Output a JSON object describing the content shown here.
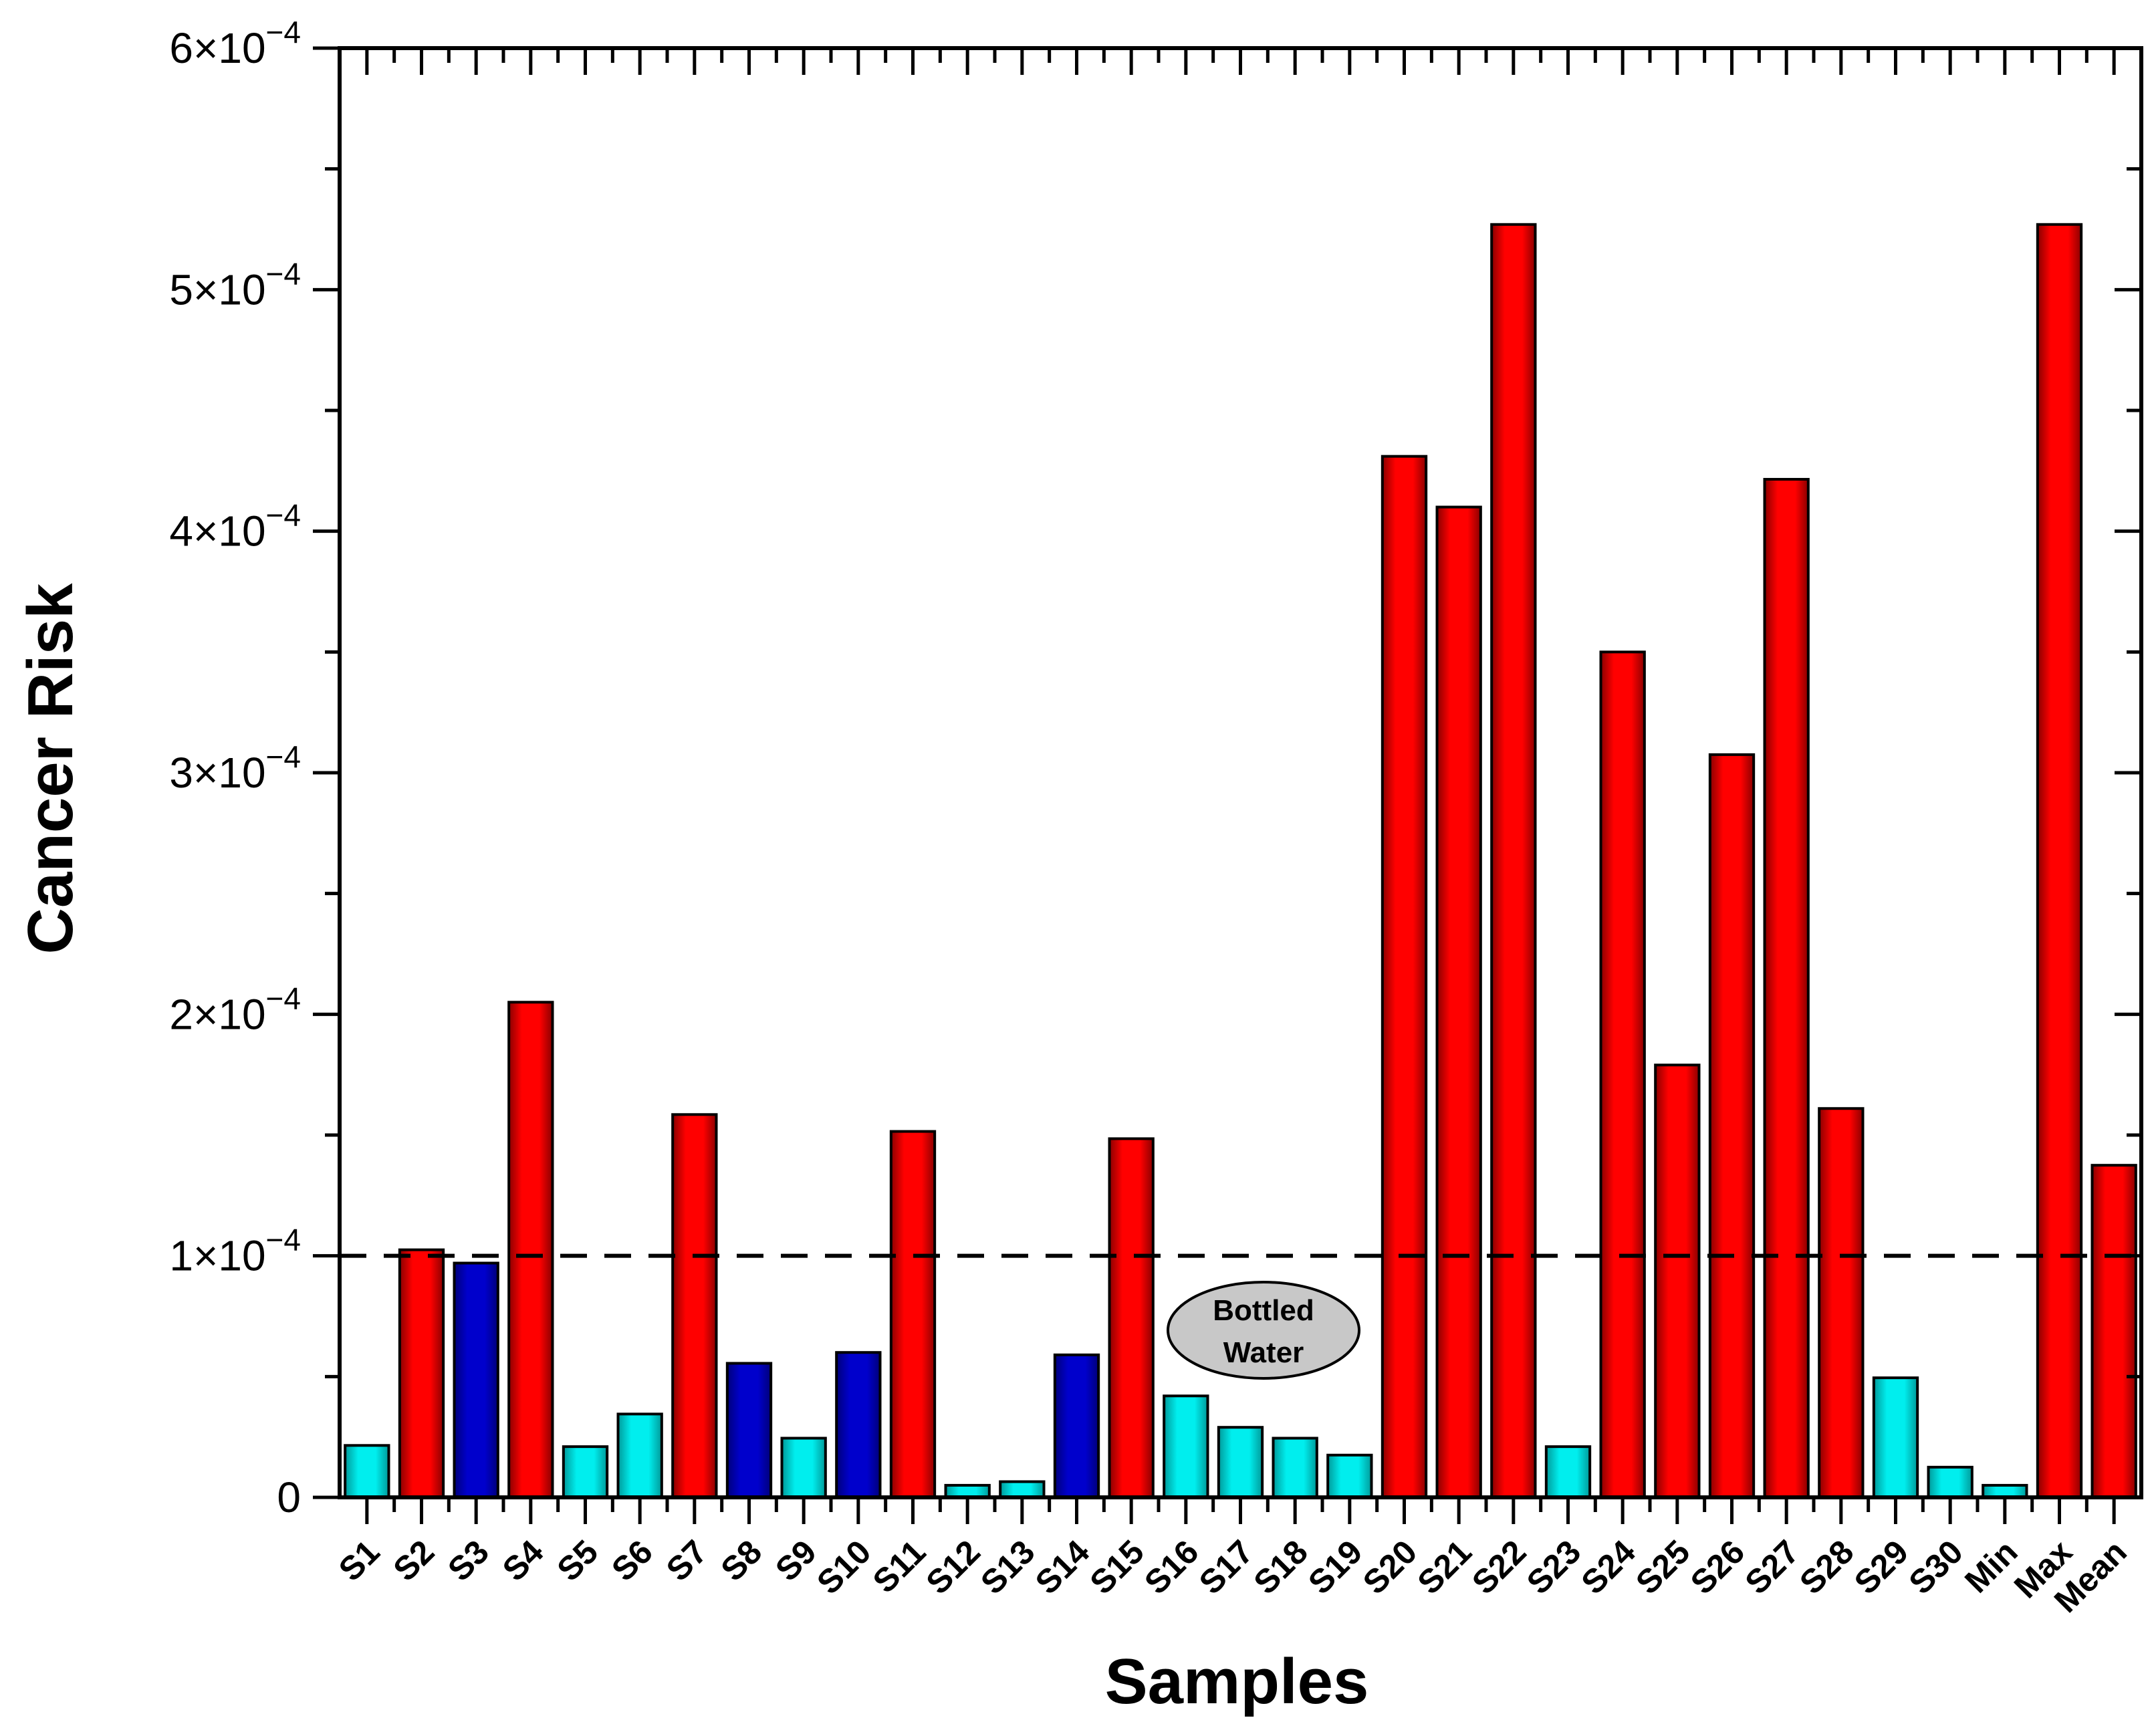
{
  "chart_data": {
    "type": "bar",
    "xlabel": "Samples",
    "ylabel": "Cancer Risk",
    "ylim": [
      0,
      0.0006
    ],
    "yticks": [
      {
        "value": 0,
        "mantissa": "0",
        "exp": ""
      },
      {
        "value": 0.0001,
        "mantissa": "1×10",
        "exp": "−4"
      },
      {
        "value": 0.0002,
        "mantissa": "2×10",
        "exp": "−4"
      },
      {
        "value": 0.0003,
        "mantissa": "3×10",
        "exp": "−4"
      },
      {
        "value": 0.0004,
        "mantissa": "4×10",
        "exp": "−4"
      },
      {
        "value": 0.0005,
        "mantissa": "5×10",
        "exp": "−4"
      },
      {
        "value": 0.0006,
        "mantissa": "6×10",
        "exp": "−4"
      }
    ],
    "minor_ytick_step": 5e-05,
    "grid": false,
    "threshold_line": {
      "value": 0.0001,
      "style": "dashed",
      "color": "#000000"
    },
    "categories": [
      "S1",
      "S2",
      "S3",
      "S4",
      "S5",
      "S6",
      "S7",
      "S8",
      "S9",
      "S10",
      "S11",
      "S12",
      "S13",
      "S14",
      "S15",
      "S16",
      "S17",
      "S18",
      "S19",
      "S20",
      "S21",
      "S22",
      "S23",
      "S24",
      "S25",
      "S26",
      "S27",
      "S28",
      "S29",
      "S30",
      "Min",
      "Max",
      "Mean"
    ],
    "values": [
      2.15e-05,
      0.0001025,
      9.7e-05,
      0.000205,
      2.1e-05,
      3.45e-05,
      0.0001585,
      5.55e-05,
      2.45e-05,
      6e-05,
      0.0001515,
      5e-06,
      6.5e-06,
      5.9e-05,
      0.0001485,
      4.2e-05,
      2.9e-05,
      2.45e-05,
      1.75e-05,
      0.000431,
      0.00041,
      0.000527,
      2.1e-05,
      0.00035,
      0.000179,
      0.0003075,
      0.0004215,
      0.000161,
      4.95e-05,
      1.25e-05,
      5e-06,
      0.000527,
      0.0001375
    ],
    "bar_colors": [
      "cyan",
      "red",
      "blue",
      "red",
      "cyan",
      "cyan",
      "red",
      "blue",
      "cyan",
      "blue",
      "red",
      "cyan",
      "cyan",
      "blue",
      "red",
      "cyan",
      "cyan",
      "cyan",
      "cyan",
      "red",
      "red",
      "red",
      "cyan",
      "red",
      "red",
      "red",
      "red",
      "red",
      "cyan",
      "cyan",
      "cyan",
      "red",
      "red"
    ],
    "palette": {
      "red": "#ff0000",
      "blue": "#0000cc",
      "cyan": "#00eeee"
    },
    "annotation": {
      "text_line1": "Bottled",
      "text_line2": "Water",
      "fill": "#c8c8c8"
    }
  }
}
